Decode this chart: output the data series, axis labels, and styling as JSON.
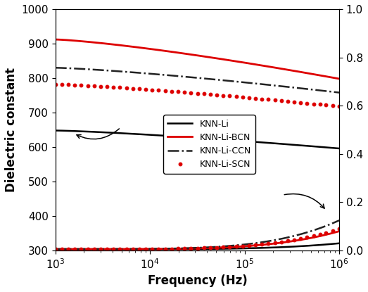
{
  "xlabel": "Frequency (Hz)",
  "ylabel_left": "Dielectric constant",
  "xlim": [
    1000,
    1000000
  ],
  "ylim_left": [
    300,
    1000
  ],
  "ylim_right": [
    0.0,
    1.0
  ],
  "right_yticks": [
    0.0,
    0.2,
    0.4,
    0.6,
    0.8,
    1.0
  ],
  "left_yticks": [
    300,
    400,
    500,
    600,
    700,
    800,
    900,
    1000
  ],
  "legend_labels": [
    "KNN-Li",
    "KNN-Li-BCN",
    "KNN-Li-CCN",
    "KNN-Li-SCN"
  ],
  "series_order": [
    "KNN-Li",
    "KNN-Li-BCN",
    "KNN-Li-CCN",
    "KNN-Li-SCN"
  ],
  "series": {
    "KNN-Li": {
      "color": "black",
      "linestyle": "-",
      "linewidth": 1.8,
      "upper_start": 648,
      "upper_end": 596,
      "loss_start": 0.005,
      "loss_end": 0.03
    },
    "KNN-Li-BCN": {
      "color": "#dd0000",
      "linestyle": "-",
      "linewidth": 2.0,
      "upper_start": 912,
      "upper_end": 798,
      "loss_start": 0.006,
      "loss_end": 0.08
    },
    "KNN-Li-CCN": {
      "color": "#222222",
      "linestyle": "-.",
      "linewidth": 1.8,
      "upper_start": 830,
      "upper_end": 758,
      "loss_start": 0.006,
      "loss_end": 0.125
    },
    "KNN-Li-SCN": {
      "color": "#dd0000",
      "linestyle": ":",
      "linewidth": 2.0,
      "upper_start": 782,
      "upper_end": 718,
      "loss_start": 0.006,
      "loss_end": 0.09
    }
  },
  "background_color": "#ffffff",
  "figsize": [
    5.23,
    4.15
  ],
  "dpi": 100
}
